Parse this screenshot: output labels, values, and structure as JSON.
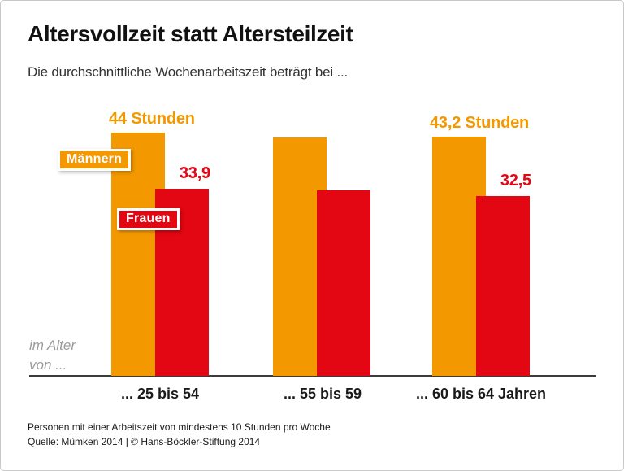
{
  "header": {
    "title": "Altersvollzeit statt Altersteilzeit",
    "subtitle": "Die durchschnittliche Wochenarbeitszeit beträgt bei ..."
  },
  "legend": {
    "men": "Männern",
    "women": "Frauen"
  },
  "axis_note": {
    "line1": "im Alter",
    "line2": "von ..."
  },
  "footer": {
    "note": "Personen mit einer Arbeitszeit von mindestens 10 Stunden pro Woche",
    "source": "Quelle: Mümken 2014 | © Hans-Böckler-Stiftung 2014"
  },
  "colors": {
    "orange": "#F49800",
    "red": "#E30613",
    "title_text": "#111111",
    "axis_note_gray": "#9a9a9a",
    "baseline": "#3b3b3b"
  },
  "chart_data": {
    "type": "bar",
    "title": "Altersvollzeit statt Altersteilzeit",
    "subtitle": "Die durchschnittliche Wochenarbeitszeit beträgt bei ...",
    "categories": [
      "... 25 bis 54",
      "... 55 bis 59",
      "... 60 bis 64 Jahren"
    ],
    "series": [
      {
        "name": "Männern",
        "color": "#F49800",
        "values": [
          44,
          43.1,
          43.2
        ],
        "data_labels": [
          "44 Stunden",
          "",
          "43,2 Stunden"
        ]
      },
      {
        "name": "Frauen",
        "color": "#E30613",
        "values": [
          33.9,
          33.5,
          32.5
        ],
        "data_labels": [
          "33,9",
          "",
          "32,5"
        ]
      }
    ],
    "unit": "Stunden",
    "xlabel": "im Alter von ...",
    "ylabel": "",
    "ylim": [
      0,
      48
    ],
    "grid": false,
    "legend_position": "on-bars"
  }
}
